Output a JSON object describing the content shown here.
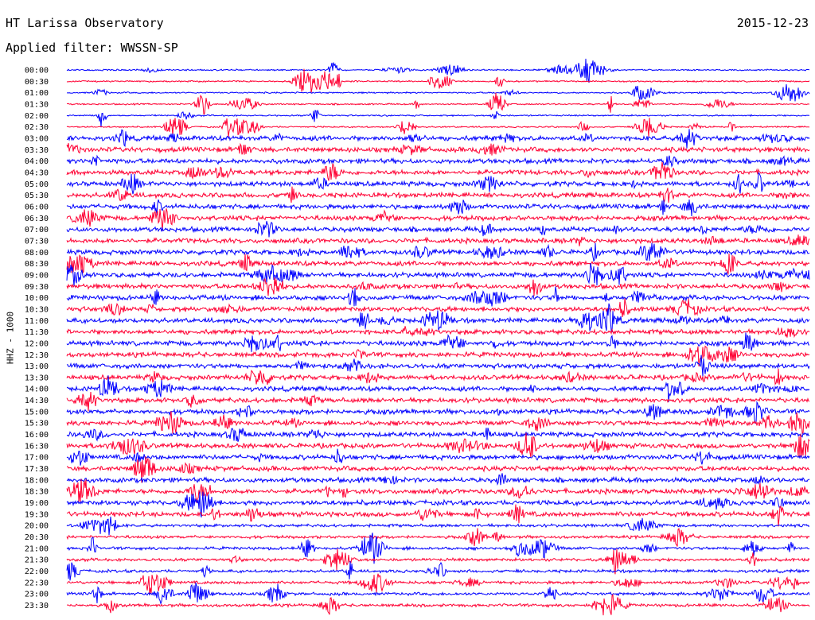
{
  "header": {
    "station": "HT Larissa Observatory",
    "date": "2015-12-23",
    "filter": "Applied filter: WWSSN-SP"
  },
  "chart_data": {
    "type": "line",
    "title": "HT Larissa Observatory",
    "subtitle": "Applied filter: WWSSN-SP",
    "date": "2015-12-23",
    "ylabel": "HHZ - 1000",
    "xlabel": "",
    "rows": [
      "00:00",
      "00:30",
      "01:00",
      "01:30",
      "02:00",
      "02:30",
      "03:00",
      "03:30",
      "04:00",
      "04:30",
      "05:00",
      "05:30",
      "06:00",
      "06:30",
      "07:00",
      "07:30",
      "08:00",
      "08:30",
      "09:00",
      "09:30",
      "10:00",
      "10:30",
      "11:00",
      "11:30",
      "12:00",
      "12:30",
      "13:00",
      "13:30",
      "14:00",
      "14:30",
      "15:00",
      "15:30",
      "16:00",
      "16:30",
      "17:00",
      "17:30",
      "18:00",
      "18:30",
      "19:00",
      "19:30",
      "20:00",
      "20:30",
      "21:00",
      "21:30",
      "22:00",
      "22:30",
      "23:00",
      "23:30"
    ],
    "colors": [
      "#0000ff",
      "#ff0033"
    ],
    "grid": false,
    "legend": "none"
  }
}
